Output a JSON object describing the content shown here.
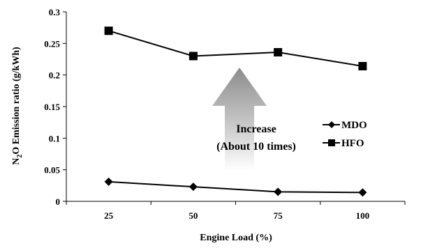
{
  "chart_data": {
    "type": "line",
    "title": "",
    "xlabel": "Engine Load (%)",
    "ylabel": {
      "prefix": "N",
      "sub": "2",
      "suffix": "O Emission ratio (g/kWh)"
    },
    "categories": [
      "25",
      "50",
      "75",
      "100"
    ],
    "y_ticks": [
      "0",
      "0.05",
      "0.1",
      "0.15",
      "0.2",
      "0.25",
      "0.3"
    ],
    "ylim": [
      0,
      0.3
    ],
    "grid": false,
    "legend_position": "right",
    "series": [
      {
        "name": "MDO",
        "marker": "diamond",
        "values": [
          0.031,
          0.023,
          0.015,
          0.014
        ]
      },
      {
        "name": "HFO",
        "marker": "square",
        "values": [
          0.27,
          0.23,
          0.236,
          0.214
        ]
      }
    ],
    "annotation": {
      "line1": "Increase",
      "line2": "(About 10 times)",
      "arrow_color": "#8c8c8c"
    }
  }
}
